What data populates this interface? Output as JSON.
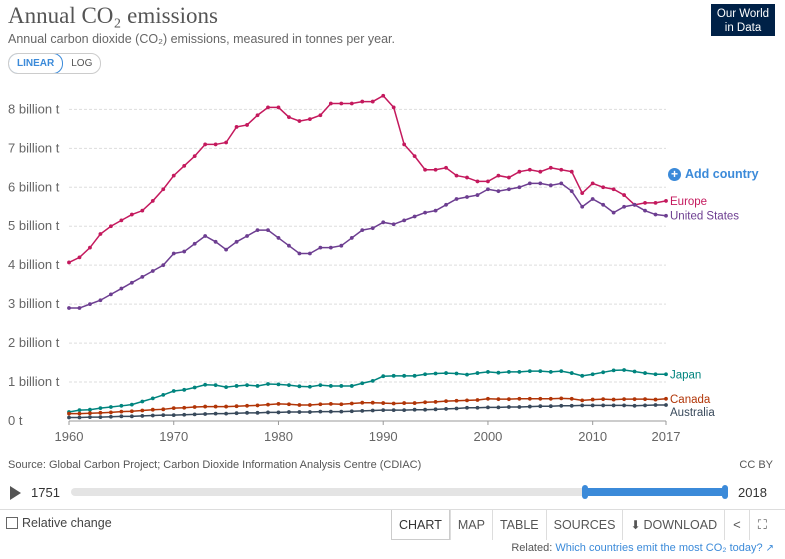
{
  "header": {
    "title": "Annual CO₂ emissions",
    "subtitle": "Annual carbon dioxide (CO₂) emissions, measured in tonnes per year.",
    "logo_line1": "Our World",
    "logo_line2": "in Data"
  },
  "scale_toggle": {
    "linear_label": "LINEAR",
    "log_label": "LOG",
    "selected": "linear"
  },
  "add_country_label": "Add country",
  "chart_data": {
    "type": "line",
    "title": "Annual CO₂ emissions",
    "subtitle": "Annual carbon dioxide (CO₂) emissions, measured in tonnes per year.",
    "xlim": [
      1960,
      2017
    ],
    "ylim": [
      0,
      8600000000
    ],
    "x_ticks": [
      1960,
      1970,
      1980,
      1990,
      2000,
      2010,
      2017
    ],
    "x_tick_labels": [
      "1960",
      "1970",
      "1980",
      "1990",
      "2000",
      "2010",
      "2017"
    ],
    "y_ticks": [
      0,
      1000000000,
      2000000000,
      3000000000,
      4000000000,
      5000000000,
      6000000000,
      7000000000,
      8000000000
    ],
    "y_tick_labels": [
      "0 t",
      "1 billion t",
      "2 billion t",
      "3 billion t",
      "4 billion t",
      "5 billion t",
      "6 billion t",
      "7 billion t",
      "8 billion t"
    ],
    "grid": "horizontal dashed",
    "legend": "line-end labels",
    "x": [
      1960,
      1961,
      1962,
      1963,
      1964,
      1965,
      1966,
      1967,
      1968,
      1969,
      1970,
      1971,
      1972,
      1973,
      1974,
      1975,
      1976,
      1977,
      1978,
      1979,
      1980,
      1981,
      1982,
      1983,
      1984,
      1985,
      1986,
      1987,
      1988,
      1989,
      1990,
      1991,
      1992,
      1993,
      1994,
      1995,
      1996,
      1997,
      1998,
      1999,
      2000,
      2001,
      2002,
      2003,
      2004,
      2005,
      2006,
      2007,
      2008,
      2009,
      2010,
      2011,
      2012,
      2013,
      2014,
      2015,
      2016,
      2017
    ],
    "series": [
      {
        "name": "Europe",
        "color": "#c4195d",
        "label": "Europe",
        "values": [
          4.07,
          4.2,
          4.45,
          4.8,
          5.0,
          5.15,
          5.3,
          5.4,
          5.65,
          5.95,
          6.3,
          6.55,
          6.8,
          7.1,
          7.1,
          7.15,
          7.55,
          7.6,
          7.85,
          8.05,
          8.05,
          7.8,
          7.7,
          7.75,
          7.85,
          8.15,
          8.15,
          8.15,
          8.2,
          8.2,
          8.35,
          8.05,
          7.1,
          6.8,
          6.45,
          6.45,
          6.5,
          6.3,
          6.25,
          6.15,
          6.15,
          6.3,
          6.25,
          6.4,
          6.45,
          6.4,
          6.5,
          6.45,
          6.4,
          5.85,
          6.1,
          6.0,
          5.95,
          5.8,
          5.55,
          5.6,
          5.6,
          5.65
        ]
      },
      {
        "name": "United States",
        "color": "#6d3e91",
        "label": "United States",
        "values": [
          2.9,
          2.9,
          3.0,
          3.1,
          3.25,
          3.4,
          3.55,
          3.7,
          3.85,
          4.0,
          4.3,
          4.35,
          4.55,
          4.75,
          4.6,
          4.4,
          4.6,
          4.75,
          4.9,
          4.9,
          4.7,
          4.5,
          4.3,
          4.3,
          4.45,
          4.45,
          4.5,
          4.7,
          4.9,
          4.95,
          5.1,
          5.05,
          5.15,
          5.25,
          5.35,
          5.4,
          5.55,
          5.7,
          5.75,
          5.8,
          5.95,
          5.9,
          5.95,
          6.0,
          6.1,
          6.1,
          6.05,
          6.1,
          5.9,
          5.5,
          5.7,
          5.55,
          5.35,
          5.5,
          5.55,
          5.4,
          5.3,
          5.27
        ]
      },
      {
        "name": "Japan",
        "color": "#00847e",
        "label": "Japan",
        "values": [
          0.23,
          0.28,
          0.29,
          0.33,
          0.36,
          0.39,
          0.42,
          0.5,
          0.58,
          0.67,
          0.77,
          0.8,
          0.86,
          0.93,
          0.92,
          0.87,
          0.9,
          0.92,
          0.9,
          0.95,
          0.94,
          0.92,
          0.89,
          0.88,
          0.92,
          0.9,
          0.9,
          0.9,
          0.97,
          1.03,
          1.15,
          1.16,
          1.16,
          1.16,
          1.2,
          1.22,
          1.23,
          1.22,
          1.19,
          1.23,
          1.26,
          1.24,
          1.26,
          1.26,
          1.28,
          1.28,
          1.26,
          1.28,
          1.23,
          1.16,
          1.2,
          1.25,
          1.3,
          1.31,
          1.27,
          1.23,
          1.2,
          1.2
        ]
      },
      {
        "name": "Canada",
        "color": "#b13507",
        "label": "Canada",
        "values": [
          0.19,
          0.19,
          0.2,
          0.21,
          0.22,
          0.24,
          0.25,
          0.27,
          0.29,
          0.3,
          0.33,
          0.34,
          0.36,
          0.37,
          0.37,
          0.37,
          0.38,
          0.39,
          0.4,
          0.42,
          0.44,
          0.43,
          0.41,
          0.41,
          0.43,
          0.44,
          0.43,
          0.45,
          0.47,
          0.47,
          0.46,
          0.45,
          0.46,
          0.46,
          0.48,
          0.49,
          0.51,
          0.52,
          0.53,
          0.54,
          0.57,
          0.56,
          0.56,
          0.57,
          0.57,
          0.57,
          0.57,
          0.58,
          0.57,
          0.53,
          0.55,
          0.56,
          0.55,
          0.56,
          0.56,
          0.56,
          0.55,
          0.57
        ]
      },
      {
        "name": "Australia",
        "color": "#38495b",
        "label": "Australia",
        "values": [
          0.09,
          0.09,
          0.1,
          0.1,
          0.11,
          0.12,
          0.12,
          0.13,
          0.14,
          0.15,
          0.15,
          0.16,
          0.17,
          0.18,
          0.19,
          0.19,
          0.2,
          0.21,
          0.21,
          0.22,
          0.22,
          0.23,
          0.23,
          0.23,
          0.24,
          0.24,
          0.24,
          0.25,
          0.26,
          0.27,
          0.28,
          0.28,
          0.28,
          0.29,
          0.29,
          0.3,
          0.31,
          0.32,
          0.34,
          0.34,
          0.35,
          0.35,
          0.36,
          0.36,
          0.37,
          0.38,
          0.38,
          0.39,
          0.39,
          0.4,
          0.4,
          0.4,
          0.4,
          0.4,
          0.39,
          0.4,
          0.41,
          0.41
        ]
      }
    ],
    "values_unit_multiplier": 1000000000
  },
  "source_text": "Source: Global Carbon Project; Carbon Dioxide Information Analysis Centre (CDIAC)",
  "license_text": "CC BY",
  "timeline": {
    "start_label": "1751",
    "end_label": "2018",
    "range_start": 1960,
    "range_end": 2017
  },
  "relative_change_label": "Relative change",
  "tabs": {
    "chart": "CHART",
    "map": "MAP",
    "table": "TABLE",
    "sources": "SOURCES",
    "download": "DOWNLOAD"
  },
  "icons": {
    "share": "share-icon",
    "fullscreen": "fullscreen-icon",
    "external": "external-link-icon",
    "download": "download-icon",
    "play": "play-icon"
  },
  "related": {
    "prefix": "Related:",
    "link_text": "Which countries emit the most CO₂ today?"
  }
}
